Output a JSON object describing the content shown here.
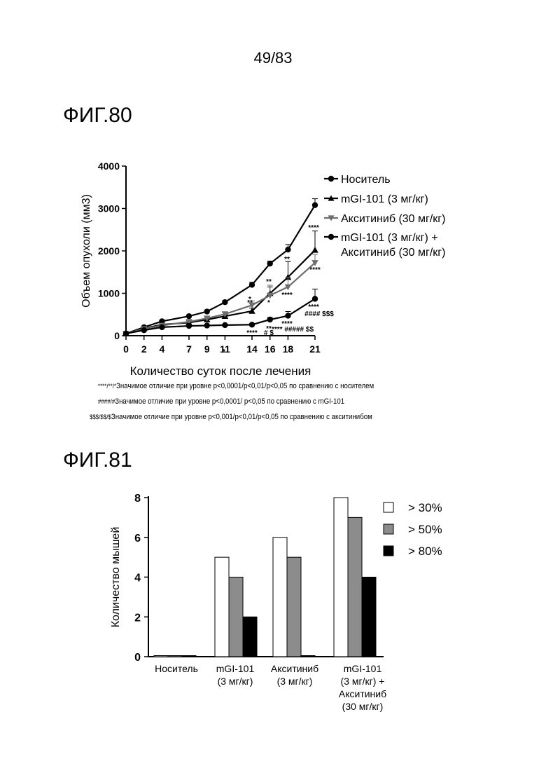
{
  "page_number": "49/83",
  "fig80": {
    "label": "ФИГ.80",
    "notes": [
      {
        "marks": "****/**/*",
        "text": "Значимое отличие при уровне p<0,0001/p<0,01/p<0,05 по сравнению с носителем"
      },
      {
        "marks": "####/#",
        "text": "Значимое отличие при уровне p<0,0001/ p<0,05 по сравнению с mGI-101"
      },
      {
        "marks": "$$$/$$/$",
        "text": "Значимое отличие при уровне p<0,001/p<0,01/p<0,05 по сравнению с акситинибом"
      }
    ]
  },
  "fig81": {
    "label": "ФИГ.81"
  },
  "colors": {
    "bar_30": "#ffffff",
    "bar_50": "#8c8c8c",
    "bar_80": "#000000",
    "series_gray": "#6e6e6e"
  },
  "chart_data": [
    {
      "type": "line",
      "xlabel": "Количество суток после лечения",
      "ylabel": "Объем опухоли (мм3)",
      "ylim": [
        0,
        4000
      ],
      "x_ticks": [
        0,
        2,
        4,
        7,
        9,
        11,
        14,
        16,
        18,
        21
      ],
      "y_ticks": [
        0,
        1000,
        2000,
        3000,
        4000
      ],
      "legend_position": "top-right",
      "x": [
        0,
        2,
        4,
        7,
        9,
        11,
        14,
        16,
        18,
        21
      ],
      "series": [
        {
          "name": "Носитель",
          "marker": "circle",
          "color": "#000000",
          "values": [
            50,
            200,
            340,
            460,
            570,
            790,
            1200,
            1700,
            2030,
            3080
          ],
          "errors": [
            0,
            20,
            25,
            30,
            30,
            40,
            60,
            60,
            120,
            150
          ]
        },
        {
          "name": "mGI-101 (3 мг/кг)",
          "marker": "triangle-up",
          "color": "#000000",
          "values": [
            50,
            170,
            260,
            310,
            380,
            460,
            580,
            1000,
            1380,
            2020
          ],
          "errors": [
            0,
            15,
            20,
            25,
            25,
            40,
            70,
            150,
            370,
            450
          ]
        },
        {
          "name": "Акситиниб (30 мг/кг)",
          "marker": "triangle-down",
          "color": "#6e6e6e",
          "values": [
            50,
            160,
            240,
            330,
            410,
            510,
            720,
            950,
            1150,
            1720
          ],
          "errors": [
            0,
            15,
            20,
            25,
            25,
            40,
            100,
            240,
            230,
            200
          ]
        },
        {
          "name": "mGI-101 (3 мг/кг) + Акситиниб (30 мг/кг)",
          "marker": "circle",
          "color": "#000000",
          "values": [
            50,
            130,
            200,
            230,
            240,
            250,
            260,
            380,
            470,
            870
          ],
          "errors": [
            0,
            10,
            15,
            15,
            15,
            15,
            25,
            50,
            100,
            230
          ]
        }
      ],
      "annotations": [
        "****",
        "**",
        "****",
        "**",
        "****",
        "****",
        "#### $$$",
        "*",
        "**",
        "*",
        "****",
        "**",
        "****",
        "# $",
        "**** ##### $$",
        "*"
      ]
    },
    {
      "type": "bar",
      "ylabel": "Количество мышей",
      "ylim": [
        0,
        8
      ],
      "y_ticks": [
        0,
        2,
        4,
        6,
        8
      ],
      "categories": [
        "Носитель",
        "mGI-101 (3 мг/кг)",
        "Акситиниб (3 мг/кг)",
        "mGI-101 (3 мг/кг) + Акситиниб (30 мг/кг)"
      ],
      "legend_position": "top-right",
      "series": [
        {
          "name": "> 30%",
          "color": "#ffffff",
          "values": [
            0,
            5,
            6,
            8
          ]
        },
        {
          "name": "> 50%",
          "color": "#8c8c8c",
          "values": [
            0,
            4,
            5,
            7
          ]
        },
        {
          "name": "> 80%",
          "color": "#000000",
          "values": [
            0,
            2,
            0,
            4
          ]
        }
      ]
    }
  ]
}
